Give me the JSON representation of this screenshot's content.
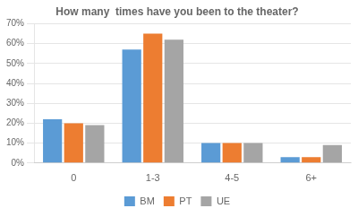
{
  "chart_data": {
    "type": "bar",
    "title": "How many  times have you been to the theater?",
    "categories": [
      "0",
      "1-3",
      "4-5",
      "6+"
    ],
    "series": [
      {
        "name": "BM",
        "color": "#5B9BD5",
        "values": [
          22,
          57,
          10,
          3
        ]
      },
      {
        "name": "PT",
        "color": "#ED7D31",
        "values": [
          20,
          65,
          10,
          3
        ]
      },
      {
        "name": "UE",
        "color": "#A5A5A5",
        "values": [
          19,
          62,
          10,
          9
        ]
      }
    ],
    "ylim": [
      0,
      70
    ],
    "yticks": [
      {
        "value": 0,
        "label": "0%"
      },
      {
        "value": 10,
        "label": "10%"
      },
      {
        "value": 20,
        "label": "20%"
      },
      {
        "value": 30,
        "label": "30%"
      },
      {
        "value": 40,
        "label": "40%"
      },
      {
        "value": 50,
        "label": "50%"
      },
      {
        "value": 60,
        "label": "60%"
      },
      {
        "value": 70,
        "label": "70%"
      }
    ],
    "grid": true,
    "legend": "bottom"
  }
}
